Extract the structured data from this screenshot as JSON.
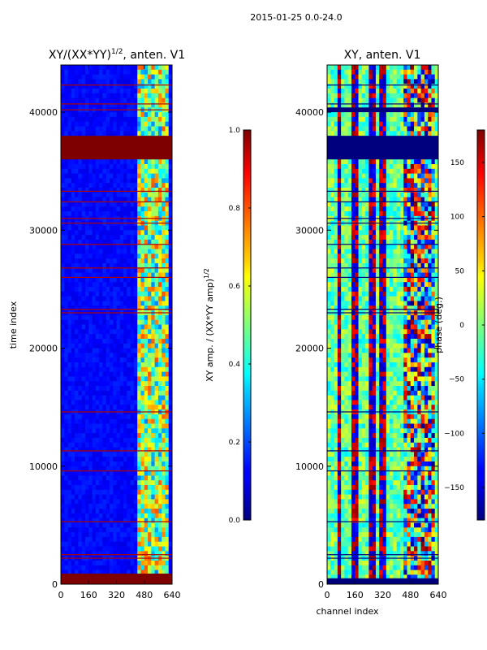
{
  "figure_title": "2015-01-25 0.0-24.0",
  "chart_data": [
    {
      "type": "heatmap",
      "title_main": "XY/(XX*YY)",
      "title_exp": "1/2",
      "title_suffix": ", anten. V1",
      "xlabel": "",
      "ylabel": "time index",
      "x_range": [
        0,
        640
      ],
      "y_range": [
        0,
        44000
      ],
      "x_ticks": [
        0,
        160,
        320,
        480,
        640
      ],
      "y_ticks": [
        0,
        10000,
        20000,
        30000,
        40000
      ],
      "colormap": "jet",
      "colorbar": {
        "label_main": "XY amp. / (XX*YY amp)",
        "label_exp": "1/2",
        "range": [
          0.0,
          1.0
        ],
        "ticks": [
          "0.0",
          "0.2",
          "0.4",
          "0.6",
          "0.8",
          "1.0"
        ]
      },
      "saturated_time_bands": [
        [
          0,
          900
        ],
        [
          36000,
          38000
        ]
      ],
      "flagged_time_rows": [
        2200,
        2500,
        5300,
        9600,
        11300,
        14600,
        23000,
        23300,
        26000,
        26800,
        28800,
        30600,
        31000,
        32400,
        33300,
        40200,
        40700,
        42300
      ],
      "active_channel_range": [
        440,
        620
      ],
      "background_level": 0.1,
      "active_level": 0.5
    },
    {
      "type": "heatmap",
      "title_main": "XY, anten. V1",
      "xlabel": "channel index",
      "ylabel": "",
      "x_range": [
        0,
        640
      ],
      "y_range": [
        0,
        44000
      ],
      "x_ticks": [
        0,
        160,
        320,
        480,
        640
      ],
      "y_ticks": [
        0,
        10000,
        20000,
        30000,
        40000
      ],
      "colormap": "jet",
      "colorbar": {
        "label": "phase (deg.)",
        "range": [
          -180,
          180
        ],
        "ticks": [
          "-150",
          "-100",
          "-50",
          "0",
          "50",
          "100",
          "150"
        ]
      },
      "masked_time_bands": [
        [
          36000,
          38000
        ],
        [
          40000,
          40400
        ],
        [
          0,
          500
        ]
      ],
      "flagged_time_rows": [
        2200,
        2500,
        5300,
        9600,
        11300,
        14600,
        23000,
        23300,
        26000,
        26800,
        28800,
        30600,
        31000,
        32400,
        33300,
        40700,
        42300
      ],
      "phase_wrap_channels": [
        70,
        160,
        260,
        320
      ],
      "active_channel_range": [
        440,
        620
      ]
    }
  ]
}
